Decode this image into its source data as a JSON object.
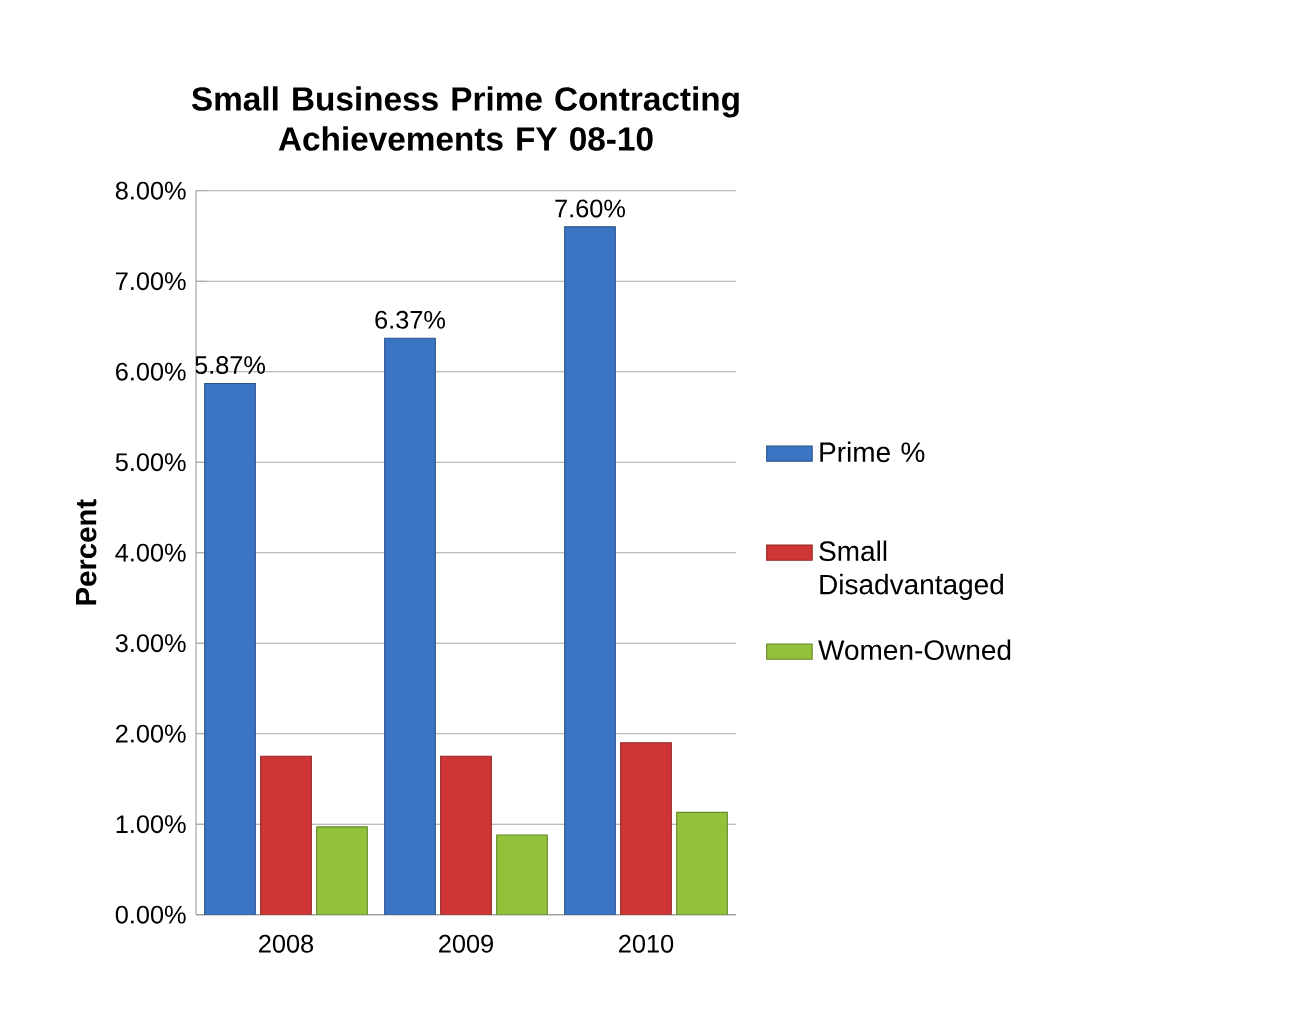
{
  "chart_data": {
    "type": "bar",
    "title": "Small Business Prime Contracting Achievements FY 08-10",
    "ylabel": "Percent",
    "categories": [
      "2008",
      "2009",
      "2010"
    ],
    "series": [
      {
        "name": "Prime %",
        "color": "#3a75c4",
        "values": [
          5.87,
          6.37,
          7.6
        ],
        "value_labels": [
          "5.87%",
          "6.37%",
          "7.60%"
        ]
      },
      {
        "name": "Small Disadvantaged",
        "color": "#d03535",
        "values": [
          1.75,
          1.75,
          1.9
        ]
      },
      {
        "name": "Women-Owned",
        "color": "#92c13a",
        "values": [
          0.97,
          0.88,
          1.13
        ]
      }
    ],
    "ylim": [
      0,
      8
    ],
    "yticks": [
      {
        "value": 0,
        "label": "0.00%"
      },
      {
        "value": 1,
        "label": "1.00%"
      },
      {
        "value": 2,
        "label": "2.00%"
      },
      {
        "value": 3,
        "label": "3.00%"
      },
      {
        "value": 4,
        "label": "4.00%"
      },
      {
        "value": 5,
        "label": "5.00%"
      },
      {
        "value": 6,
        "label": "6.00%"
      },
      {
        "value": 7,
        "label": "7.00%"
      },
      {
        "value": 8,
        "label": "8.00%"
      }
    ],
    "grid": "y",
    "legend": "right"
  }
}
